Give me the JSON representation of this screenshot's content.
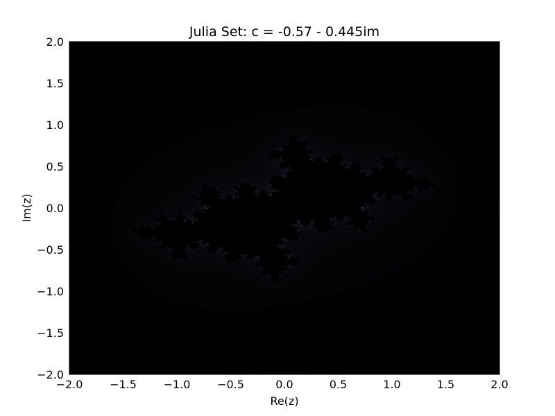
{
  "chart_data": {
    "type": "heatmap",
    "title": "Julia Set: c = -0.57 - 0.445im",
    "xlabel": "Re(z)",
    "ylabel": "Im(z)",
    "xlim": [
      -2.0,
      2.0
    ],
    "ylim": [
      -2.0,
      2.0
    ],
    "xticks": [
      -2.0,
      -1.5,
      -1.0,
      -0.5,
      0.0,
      0.5,
      1.0,
      1.5,
      2.0
    ],
    "yticks": [
      -2.0,
      -1.5,
      -1.0,
      -0.5,
      0.0,
      0.5,
      1.0,
      1.5,
      2.0
    ],
    "xtick_labels": [
      "−2.0",
      "−1.5",
      "−1.0",
      "−0.5",
      "0.0",
      "0.5",
      "1.0",
      "1.5",
      "2.0"
    ],
    "ytick_labels": [
      "−2.0",
      "−1.5",
      "−1.0",
      "−0.5",
      "0.0",
      "0.5",
      "1.0",
      "1.5",
      "2.0"
    ],
    "c": [
      -0.57,
      -0.445
    ],
    "max_iterations": 120,
    "grid": false,
    "colormap": [
      "#000000",
      "#0e0c16",
      "#1e1b2e",
      "#3c3852",
      "#7a7596",
      "#c8c2e0",
      "#ffffff"
    ],
    "background_color": "#000000"
  }
}
